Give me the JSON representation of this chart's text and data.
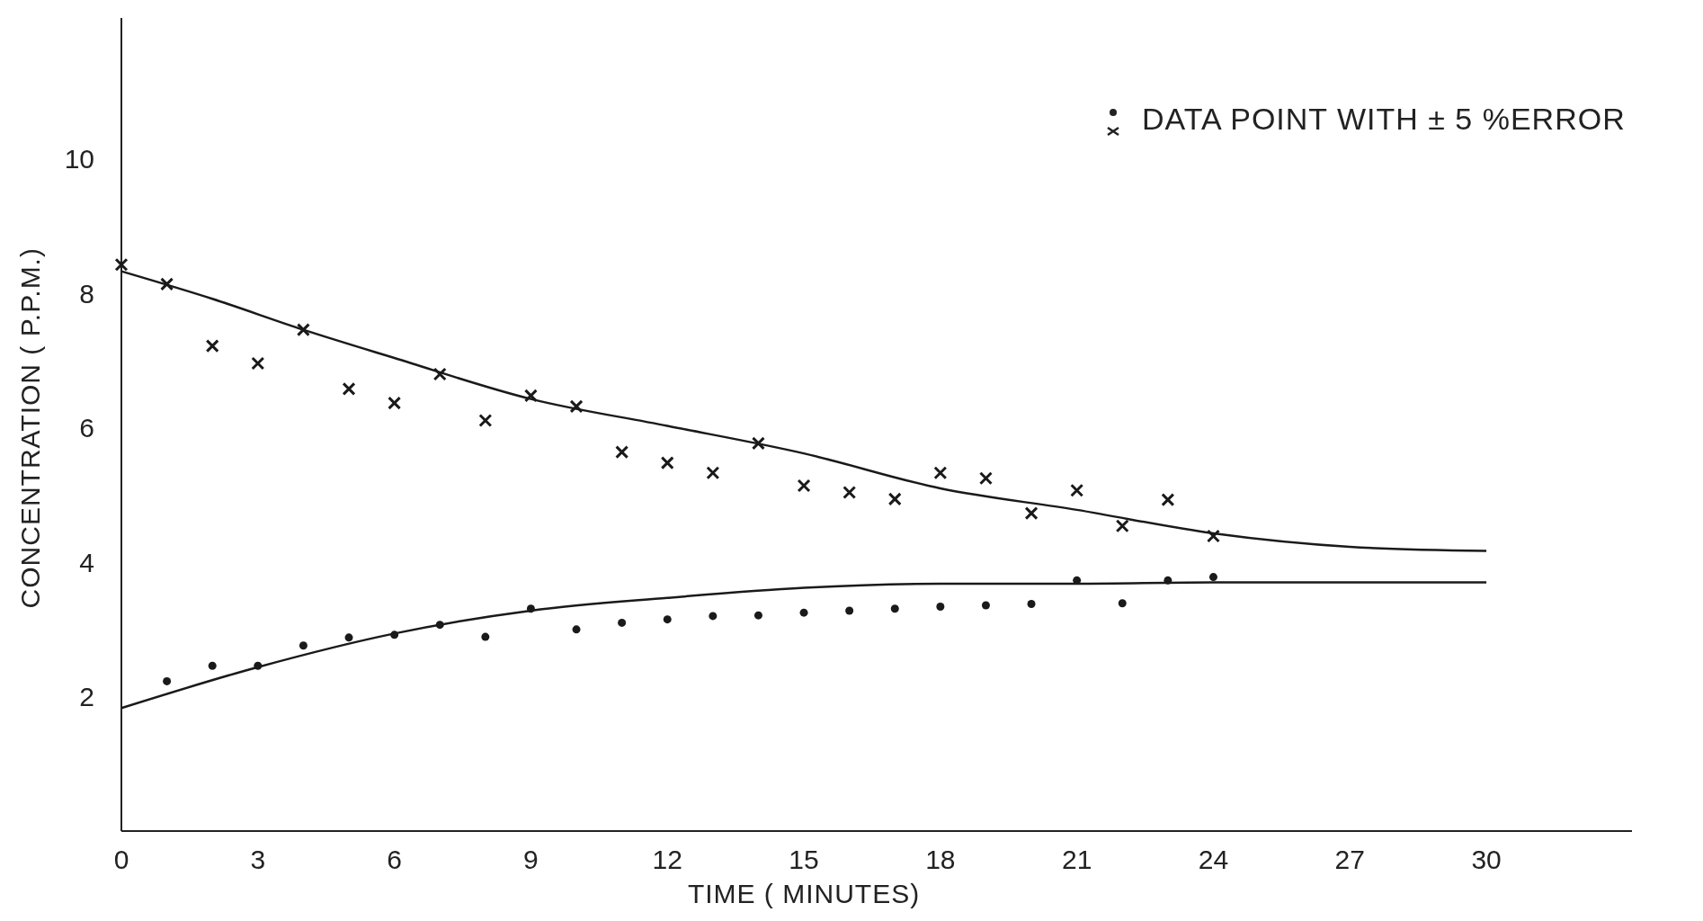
{
  "chart_data": {
    "type": "scatter",
    "xlabel": "TIME ( MINUTES)",
    "ylabel": "CONCENTRATION ( P.P.M.)",
    "xlim": [
      0,
      33.2
    ],
    "ylim": [
      0,
      12.1
    ],
    "xticks": [
      0,
      3,
      6,
      9,
      12,
      15,
      18,
      21,
      24,
      27,
      30
    ],
    "yticks": [
      2,
      4,
      6,
      8,
      10
    ],
    "grid": false,
    "annotations": [
      "DATA POINT WITH ± 5 %ERROR"
    ],
    "series": [
      {
        "type": "scatter",
        "marker": "cross",
        "color": "#1a1a1a",
        "x": [
          0,
          1,
          2,
          3,
          4,
          5,
          6,
          7,
          8,
          9,
          10,
          11,
          12,
          13,
          14,
          15,
          16,
          17,
          18,
          19,
          20,
          21,
          22,
          23,
          24
        ],
        "values": [
          8.43,
          8.14,
          7.22,
          6.96,
          7.46,
          6.58,
          6.37,
          6.8,
          6.11,
          6.48,
          6.32,
          5.64,
          5.48,
          5.33,
          5.77,
          5.14,
          5.04,
          4.94,
          5.33,
          5.25,
          4.73,
          5.07,
          4.54,
          4.93,
          4.39
        ]
      },
      {
        "type": "scatter",
        "marker": "circle",
        "color": "#1a1a1a",
        "x": [
          1,
          2,
          3,
          4,
          5,
          6,
          7,
          8,
          9,
          10,
          11,
          12,
          13,
          14,
          15,
          16,
          17,
          18,
          19,
          20,
          21,
          22,
          23,
          24
        ],
        "values": [
          2.23,
          2.46,
          2.46,
          2.76,
          2.88,
          2.92,
          3.07,
          2.89,
          3.31,
          3.0,
          3.1,
          3.15,
          3.2,
          3.21,
          3.25,
          3.28,
          3.31,
          3.34,
          3.36,
          3.38,
          3.73,
          3.39,
          3.73,
          3.78
        ]
      },
      {
        "type": "line",
        "marker": "none",
        "line_style": "solid",
        "color": "#1a1a1a",
        "x": [
          0,
          2,
          4,
          6,
          9,
          12,
          15,
          18,
          21,
          24,
          27,
          30
        ],
        "values": [
          8.33,
          7.92,
          7.46,
          7.04,
          6.43,
          6.03,
          5.62,
          5.1,
          4.78,
          4.43,
          4.23,
          4.17
        ]
      },
      {
        "type": "line",
        "marker": "none",
        "line_style": "solid",
        "color": "#1a1a1a",
        "x": [
          0,
          3,
          6,
          9,
          12,
          15,
          18,
          21,
          24,
          30
        ],
        "values": [
          1.83,
          2.44,
          2.94,
          3.28,
          3.47,
          3.62,
          3.68,
          3.68,
          3.7,
          3.7
        ]
      }
    ]
  }
}
